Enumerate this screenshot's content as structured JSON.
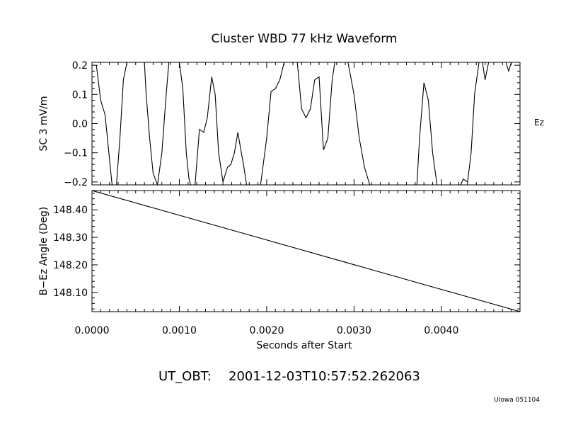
{
  "figure": {
    "title": "Cluster WBD 77 kHz Waveform",
    "timestamp_label": "UT_OBT:",
    "timestamp_value": "2001-12-03T10:57:52.262063",
    "credit": "UIowa 051104",
    "xlabel": "Seconds after Start"
  },
  "chart_data": [
    {
      "type": "line",
      "title": "Cluster WBD 77 kHz Waveform",
      "ylabel": "SC 3 mV/m",
      "side_label": "Ez",
      "xlim": [
        0,
        0.0049
      ],
      "ylim": [
        -0.21,
        0.21
      ],
      "yticks": [
        -0.2,
        -0.1,
        0.0,
        0.1,
        0.2
      ],
      "ytick_labels": [
        "−0.2",
        "−0.1",
        "0.0",
        "0.1",
        "0.2"
      ],
      "grid": false,
      "series": [
        {
          "x": [
            5e-05,
            0.0001,
            0.00015,
            0.0002,
            0.00023,
            0.00028,
            0.00032,
            0.00036,
            0.0004,
            0.0006,
            0.00062,
            0.00066,
            0.0007,
            0.00075,
            0.0008,
            0.00085,
            0.00088,
            0.001,
            0.00104,
            0.00108,
            0.00111,
            0.00113,
            0.00118,
            0.00123,
            0.00128,
            0.00132,
            0.00137,
            0.00141,
            0.00145,
            0.0015,
            0.00155,
            0.00159,
            0.00163,
            0.00167,
            0.00171,
            0.00174,
            0.00177,
            0.00193,
            0.002,
            0.00205,
            0.0021,
            0.00215,
            0.0022,
            0.00225,
            0.00235,
            0.0024,
            0.00245,
            0.0025,
            0.00255,
            0.0026,
            0.00265,
            0.0027,
            0.00275,
            0.00278,
            0.00282,
            0.00285,
            0.00293,
            0.003,
            0.00306,
            0.00312,
            0.00318,
            0.00372,
            0.00375,
            0.0038,
            0.00385,
            0.0039,
            0.00395,
            0.00422,
            0.00425,
            0.0043,
            0.00434,
            0.00438,
            0.00443,
            0.00447,
            0.0045,
            0.00454,
            0.00474,
            0.00477,
            0.0048
          ],
          "y": [
            0.2,
            0.08,
            0.03,
            -0.12,
            -0.21,
            -0.21,
            -0.05,
            0.15,
            0.21,
            0.21,
            0.1,
            -0.05,
            -0.17,
            -0.21,
            -0.1,
            0.1,
            0.21,
            0.21,
            0.12,
            -0.1,
            -0.19,
            -0.21,
            -0.21,
            -0.02,
            -0.03,
            0.02,
            0.16,
            0.1,
            -0.1,
            -0.2,
            -0.15,
            -0.14,
            -0.1,
            -0.03,
            -0.1,
            -0.15,
            -0.21,
            -0.21,
            -0.05,
            0.11,
            0.12,
            0.15,
            0.21,
            0.21,
            0.21,
            0.05,
            0.02,
            0.05,
            0.15,
            0.16,
            -0.09,
            -0.05,
            0.15,
            0.21,
            0.21,
            0.21,
            0.21,
            0.1,
            -0.05,
            -0.15,
            -0.21,
            -0.21,
            -0.05,
            0.14,
            0.08,
            -0.1,
            -0.21,
            -0.21,
            -0.19,
            -0.2,
            -0.1,
            0.1,
            0.21,
            0.21,
            0.15,
            0.21,
            0.21,
            0.18,
            0.21
          ]
        }
      ]
    },
    {
      "type": "line",
      "ylabel": "B−Ez Angle (Deg)",
      "xlabel": "Seconds after Start",
      "xlim": [
        0,
        0.0049
      ],
      "ylim": [
        148.03,
        148.47
      ],
      "yticks": [
        148.1,
        148.2,
        148.3,
        148.4
      ],
      "ytick_labels": [
        "148.10",
        "148.20",
        "148.30",
        "148.40"
      ],
      "xticks": [
        0.0,
        0.001,
        0.002,
        0.003,
        0.004
      ],
      "xtick_labels": [
        "0.0000",
        "0.0010",
        "0.0020",
        "0.0030",
        "0.0040"
      ],
      "grid": false,
      "series": [
        {
          "x": [
            0.0,
            0.0049
          ],
          "y": [
            148.47,
            148.03
          ]
        }
      ]
    }
  ]
}
